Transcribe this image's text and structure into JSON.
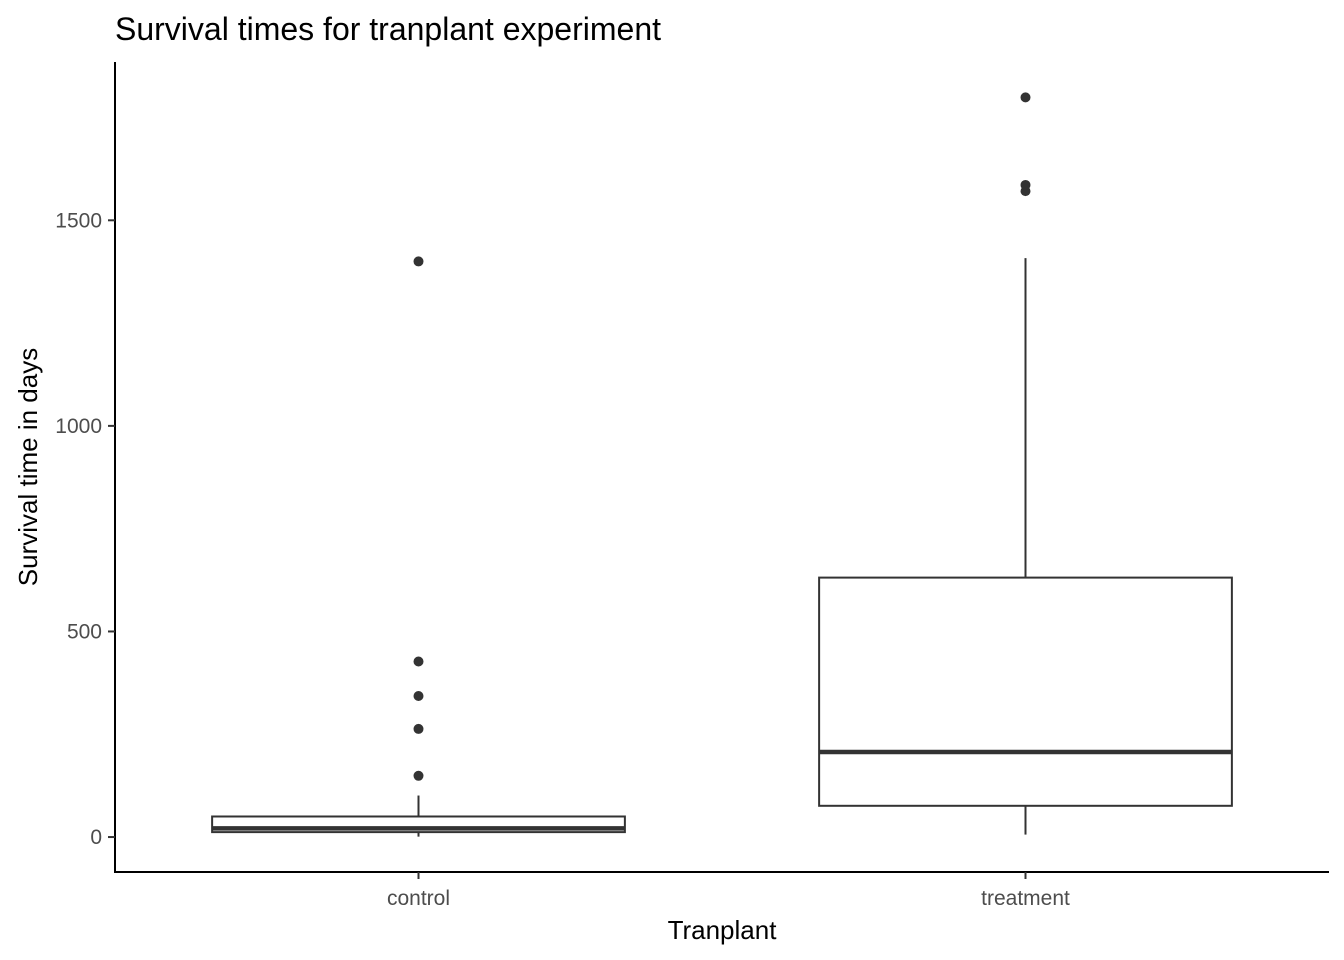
{
  "chart_data": {
    "type": "boxplot",
    "title": "Survival times for tranplant experiment",
    "xlabel": "Tranplant",
    "ylabel": "Survival time in days",
    "categories": [
      "control",
      "treatment"
    ],
    "ylim": [
      -85,
      1885
    ],
    "yticks": [
      0,
      500,
      1000,
      1500
    ],
    "grid": false,
    "boxes": [
      {
        "category": "control",
        "whisker_low": 1,
        "q1": 12,
        "median": 21,
        "q3": 50,
        "whisker_high": 101,
        "outliers": [
          149,
          263,
          343,
          427,
          1400
        ]
      },
      {
        "category": "treatment",
        "whisker_low": 6,
        "q1": 76,
        "median": 207,
        "q3": 631,
        "whisker_high": 1408,
        "outliers": [
          1571,
          1586,
          1799
        ]
      }
    ],
    "colors": {
      "box_line": "#333333",
      "box_fill": "#ffffff",
      "axis": "#000000",
      "tick_label": "#4d4d4d"
    }
  }
}
